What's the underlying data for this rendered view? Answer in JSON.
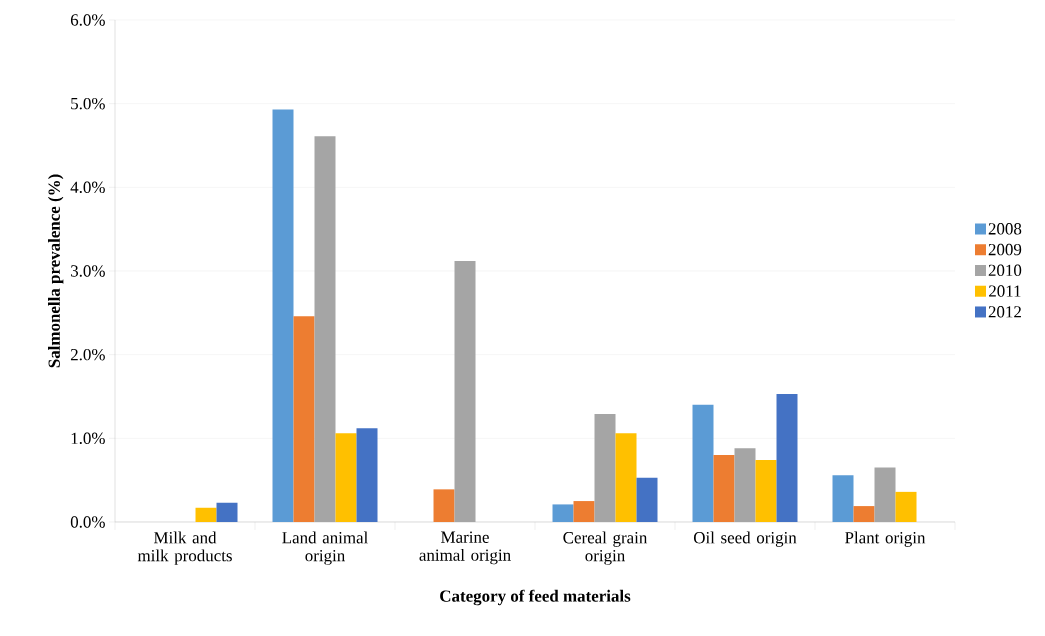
{
  "chart_data": {
    "type": "bar",
    "xlabel": "Category of feed materials",
    "ylabel": "Salmonella prevalence (%)",
    "categories": [
      "Milk  and milk products",
      "Land animal origin",
      "Marine animal origin",
      "Cereal grain origin",
      "Oil seed origin",
      "Plant origin"
    ],
    "series": [
      {
        "name": "2008",
        "color": "#5b9bd5",
        "values": [
          0,
          4.93,
          0,
          0.21,
          1.4,
          0.56
        ]
      },
      {
        "name": "2009",
        "color": "#ed7d31",
        "values": [
          0,
          2.46,
          0.39,
          0.25,
          0.8,
          0.19
        ]
      },
      {
        "name": "2010",
        "color": "#a5a5a5",
        "values": [
          0,
          4.61,
          3.12,
          1.29,
          0.88,
          0.65
        ]
      },
      {
        "name": "2011",
        "color": "#ffc000",
        "values": [
          0.17,
          1.06,
          0,
          1.06,
          0.74,
          0.36
        ]
      },
      {
        "name": "2012",
        "color": "#4472c4",
        "values": [
          0.23,
          1.12,
          0,
          0.53,
          1.53,
          0
        ]
      }
    ],
    "ylim": [
      0,
      6
    ],
    "yticks": [
      {
        "value": 0,
        "label": "0.0%"
      },
      {
        "value": 1,
        "label": "1.0%"
      },
      {
        "value": 2,
        "label": "2.0%"
      },
      {
        "value": 3,
        "label": "3.0%"
      },
      {
        "value": 4,
        "label": "4.0%"
      },
      {
        "value": 5,
        "label": "5.0%"
      },
      {
        "value": 6,
        "label": "6.0%"
      }
    ],
    "grid": "y",
    "legend": "right"
  }
}
